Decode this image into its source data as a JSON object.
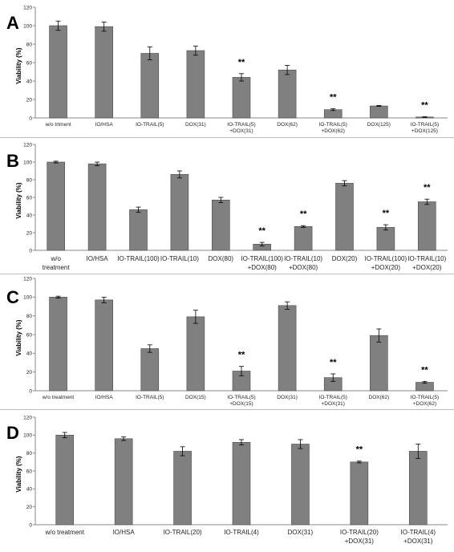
{
  "chart_data": [
    {
      "type": "bar",
      "panel_label": "A",
      "ylabel": "Viability (%)",
      "ylim": [
        0,
        120
      ],
      "yticks": [
        0,
        20,
        40,
        60,
        80,
        100,
        120
      ],
      "grid": false,
      "bar_color": "#808080",
      "categories": [
        [
          "w/o trtment"
        ],
        [
          "IO/HSA"
        ],
        [
          "IO-TRAIL(5)"
        ],
        [
          "DOX(31)"
        ],
        [
          "IO-TRAIL(5)",
          "+DOX(31)"
        ],
        [
          "DOX(62)"
        ],
        [
          "IO-TRAIL(5)",
          "+DOX(62)"
        ],
        [
          "DOX(125)"
        ],
        [
          "IO-TRAIL(5)",
          "+DOX(125)"
        ]
      ],
      "values": [
        100,
        99,
        70,
        73,
        44,
        52,
        9,
        13,
        1
      ],
      "errors": [
        5,
        5,
        7,
        5,
        4,
        5,
        1,
        0.5,
        0.3
      ],
      "significance": [
        "",
        "",
        "",
        "",
        "**",
        "",
        "**",
        "",
        "**"
      ]
    },
    {
      "type": "bar",
      "panel_label": "B",
      "ylabel": "Viability (%)",
      "ylim": [
        0,
        120
      ],
      "yticks": [
        0,
        20,
        40,
        60,
        80,
        100,
        120
      ],
      "grid": false,
      "bar_color": "#808080",
      "categories": [
        [
          "w/o",
          "treatment"
        ],
        [
          "IO/HSA"
        ],
        [
          "IO-TRAIL(100)"
        ],
        [
          "IO-TRAIL(10)"
        ],
        [
          "DOX(80)"
        ],
        [
          "IO-TRAIL(100)",
          "+DOX(80)"
        ],
        [
          "IO-TRAIL(10)",
          "+DOX(80)"
        ],
        [
          "DOX(20)"
        ],
        [
          "IO-TRAIL(100)",
          "+DOX(20)"
        ],
        [
          "IO-TRAIL(10)",
          "+DOX(20)"
        ]
      ],
      "values": [
        100,
        98,
        46,
        86,
        57,
        7,
        27,
        76,
        26,
        55
      ],
      "errors": [
        1,
        2,
        3,
        4,
        3,
        2,
        1,
        3,
        3,
        3
      ],
      "significance": [
        "",
        "",
        "",
        "",
        "",
        "**",
        "**",
        "",
        "**",
        "**"
      ]
    },
    {
      "type": "bar",
      "panel_label": "C",
      "ylabel": "Viability (%)",
      "ylim": [
        0,
        120
      ],
      "yticks": [
        0,
        20,
        40,
        60,
        80,
        100,
        120
      ],
      "grid": false,
      "bar_color": "#808080",
      "categories": [
        [
          "w/o treatment"
        ],
        [
          "IO/HSA"
        ],
        [
          "IO-TRAIL(5)"
        ],
        [
          "DOX(15)"
        ],
        [
          "IO-TRAIL(5)",
          "+DOX(15)"
        ],
        [
          "DOX(31)"
        ],
        [
          "IO-TRAIL(5)",
          "+DOX(31)"
        ],
        [
          "DOX(62)"
        ],
        [
          "IO-TRAIL(5)",
          "+DOX(62)"
        ]
      ],
      "values": [
        100,
        97,
        45,
        79,
        21,
        91,
        14,
        59,
        9
      ],
      "errors": [
        1,
        3,
        4,
        7,
        5,
        4,
        4,
        7,
        1
      ],
      "significance": [
        "",
        "",
        "",
        "",
        "**",
        "",
        "**",
        "",
        "**"
      ]
    },
    {
      "type": "bar",
      "panel_label": "D",
      "ylabel": "Viability (%)",
      "ylim": [
        0,
        120
      ],
      "yticks": [
        0,
        20,
        40,
        60,
        80,
        100,
        120
      ],
      "grid": false,
      "bar_color": "#808080",
      "categories": [
        [
          "w/o treatment"
        ],
        [
          "IO/HSA"
        ],
        [
          "IO-TRAIL(20)"
        ],
        [
          "IO-TRAIL(4)"
        ],
        [
          "DOX(31)"
        ],
        [
          "IO-TRAIL(20)",
          "+DOX(31)"
        ],
        [
          "IO-TRAIL(4)",
          "+DOX(31)"
        ]
      ],
      "values": [
        100,
        96,
        82,
        92,
        90,
        70,
        82
      ],
      "errors": [
        3,
        2,
        5,
        3,
        5,
        1,
        8
      ],
      "significance": [
        "",
        "",
        "",
        "",
        "",
        "**",
        ""
      ]
    }
  ]
}
